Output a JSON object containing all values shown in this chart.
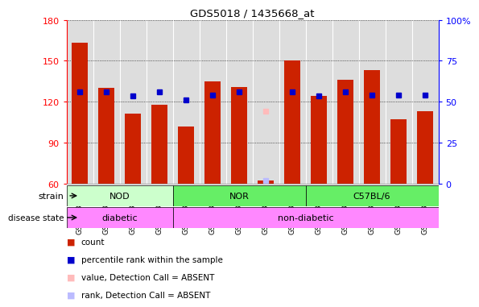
{
  "title": "GDS5018 / 1435668_at",
  "samples": [
    "GSM1133080",
    "GSM1133081",
    "GSM1133082",
    "GSM1133083",
    "GSM1133084",
    "GSM1133085",
    "GSM1133086",
    "GSM1133087",
    "GSM1133088",
    "GSM1133089",
    "GSM1133090",
    "GSM1133091",
    "GSM1133092",
    "GSM1133093"
  ],
  "counts": [
    163,
    130,
    111,
    118,
    102,
    135,
    131,
    62,
    150,
    124,
    136,
    143,
    107,
    113
  ],
  "percentile_ranks": [
    127,
    127,
    124,
    127,
    121,
    125,
    127,
    null,
    127,
    124,
    127,
    125,
    125,
    125
  ],
  "absent_value": [
    null,
    null,
    null,
    null,
    null,
    null,
    null,
    113,
    null,
    null,
    null,
    null,
    null,
    null
  ],
  "absent_rank": [
    null,
    null,
    null,
    null,
    null,
    null,
    null,
    62,
    null,
    null,
    null,
    null,
    null,
    null
  ],
  "ylim_left": [
    60,
    180
  ],
  "ylim_right": [
    0,
    100
  ],
  "yticks_left": [
    60,
    90,
    120,
    150,
    180
  ],
  "yticks_right": [
    0,
    25,
    50,
    75,
    100
  ],
  "bar_color": "#cc2200",
  "percentile_color": "#0000cc",
  "absent_val_color": "#ffbbbb",
  "absent_rank_color": "#bbbbff",
  "bar_bottom": 60,
  "strain_groups": [
    {
      "label": "NOD",
      "start": 0,
      "end": 3,
      "color": "#ccffcc"
    },
    {
      "label": "NOR",
      "start": 4,
      "end": 8,
      "color": "#66ee66"
    },
    {
      "label": "C57BL/6",
      "start": 9,
      "end": 13,
      "color": "#66ee66"
    }
  ],
  "disease_groups": [
    {
      "label": "diabetic",
      "start": 0,
      "end": 3,
      "color": "#ff88ff"
    },
    {
      "label": "non-diabetic",
      "start": 4,
      "end": 13,
      "color": "#ff88ff"
    }
  ],
  "bg_color": "#ffffff",
  "plot_bg": "#dddddd",
  "legend_items": [
    {
      "color": "#cc2200",
      "label": "count"
    },
    {
      "color": "#0000cc",
      "label": "percentile rank within the sample"
    },
    {
      "color": "#ffbbbb",
      "label": "value, Detection Call = ABSENT"
    },
    {
      "color": "#bbbbff",
      "label": "rank, Detection Call = ABSENT"
    }
  ]
}
